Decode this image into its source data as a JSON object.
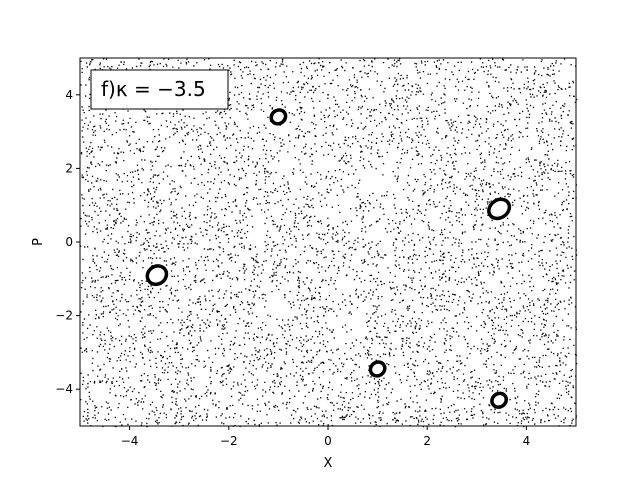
{
  "chart_data": {
    "type": "scatter",
    "xlabel": "X",
    "ylabel": "P",
    "xlim": [
      -5,
      5
    ],
    "ylim": [
      -5,
      5
    ],
    "x_ticks": [
      -4,
      -2,
      0,
      2,
      4
    ],
    "y_ticks": [
      -4,
      -2,
      0,
      2,
      4
    ],
    "x_tick_labels": [
      "−4",
      "−2",
      "0",
      "2",
      "4"
    ],
    "y_tick_labels": [
      "−4",
      "−2",
      "0",
      "2",
      "4"
    ],
    "grid": false,
    "marker_color": "#000000",
    "annotation": {
      "text": "f)κ = −3.5",
      "location": "top-left"
    },
    "chaotic_sea": {
      "description_visible": false,
      "approx_point_count": 16000,
      "x_range": [
        -5,
        5
      ],
      "y_range": [
        -5,
        5
      ]
    },
    "voids": [
      {
        "center": [
          1.0,
          1.65
        ],
        "rx": 0.35,
        "ry": 0.2
      },
      {
        "center": [
          -1.0,
          -1.75
        ],
        "rx": 0.22,
        "ry": 0.3
      }
    ],
    "islands": [
      {
        "center": [
          -1.0,
          3.4
        ],
        "rx": 0.15,
        "ry": 0.18
      },
      {
        "center": [
          3.45,
          0.9
        ],
        "rx": 0.22,
        "ry": 0.24
      },
      {
        "center": [
          -3.45,
          -0.9
        ],
        "rx": 0.2,
        "ry": 0.24
      },
      {
        "center": [
          1.0,
          -3.45
        ],
        "rx": 0.15,
        "ry": 0.18
      },
      {
        "center": [
          3.45,
          -4.3
        ],
        "rx": 0.15,
        "ry": 0.18
      }
    ]
  }
}
